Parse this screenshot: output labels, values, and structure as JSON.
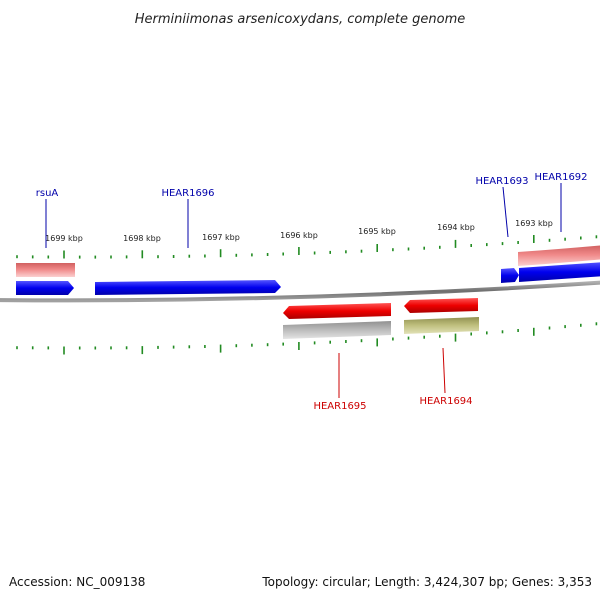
{
  "title": "Herminiimonas arsenicoxydans, complete genome",
  "footer": {
    "accession": "Accession: NC_009138",
    "summary": "Topology: circular; Length: 3,424,307 bp; Genes: 3,353"
  },
  "colors": {
    "forward_gene": "#0000ee",
    "reverse_gene": "#ee0000",
    "forward_label": "#0000aa",
    "reverse_label": "#cc0000",
    "forward_cds_pink": "#f08080",
    "reverse_cds_grey": "#b0b0b0",
    "reverse_cds_olive": "#b8b870",
    "tick": "#228B22",
    "backbone": "#888888"
  },
  "ticks": [
    {
      "label": "1699 kbp"
    },
    {
      "label": "1698 kbp"
    },
    {
      "label": "1697 kbp"
    },
    {
      "label": "1696 kbp"
    },
    {
      "label": "1695 kbp"
    },
    {
      "label": "1694 kbp"
    },
    {
      "label": "1693 kbp"
    }
  ],
  "genes": [
    {
      "name": "rsuA",
      "strand": "forward"
    },
    {
      "name": "HEAR1696",
      "strand": "forward"
    },
    {
      "name": "HEAR1693",
      "strand": "forward"
    },
    {
      "name": "HEAR1692",
      "strand": "forward"
    },
    {
      "name": "HEAR1695",
      "strand": "reverse"
    },
    {
      "name": "HEAR1694",
      "strand": "reverse"
    }
  ]
}
